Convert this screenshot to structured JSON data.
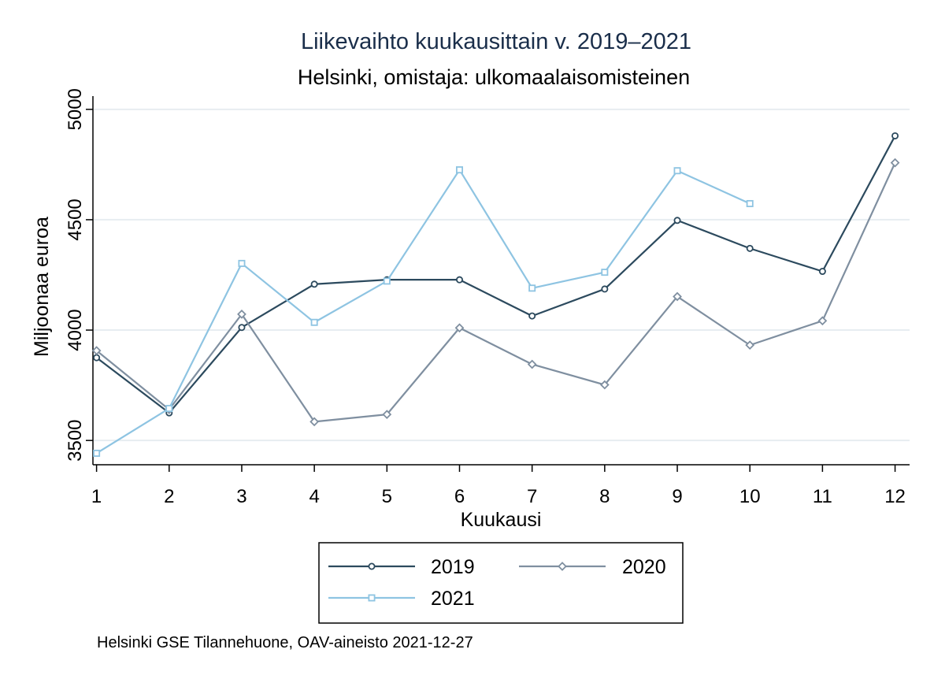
{
  "chart_data": {
    "type": "line",
    "title": "Liikevaihto kuukausittain v. 2019–2021",
    "subtitle": "Helsinki, omistaja: ulkomaalaisomisteinen",
    "xlabel": "Kuukausi",
    "ylabel": "Miljoonaa euroa",
    "xlim": [
      0.95,
      12.2
    ],
    "ylim": [
      3390,
      5060
    ],
    "x_ticks": [
      1,
      2,
      3,
      4,
      5,
      6,
      7,
      8,
      9,
      10,
      11,
      12
    ],
    "y_ticks": [
      3500,
      4000,
      4500,
      5000
    ],
    "grid": true,
    "legend_position": "bottom",
    "series": [
      {
        "name": "2019",
        "color": "#2c4a5e",
        "marker": "circle",
        "x": [
          1,
          2,
          3,
          4,
          5,
          6,
          7,
          8,
          9,
          10,
          11,
          12
        ],
        "values": [
          3875,
          3625,
          4012,
          4208,
          4228,
          4228,
          4064,
          4186,
          4497,
          4370,
          4266,
          4880
        ]
      },
      {
        "name": "2020",
        "color": "#7f8fa0",
        "marker": "diamond",
        "x": [
          1,
          2,
          3,
          4,
          5,
          6,
          7,
          8,
          9,
          10,
          11,
          12
        ],
        "values": [
          3907,
          3640,
          4072,
          3585,
          3618,
          4010,
          3845,
          3752,
          4152,
          3932,
          4042,
          4758
        ]
      },
      {
        "name": "2021",
        "color": "#8ec4e2",
        "marker": "square",
        "x": [
          1,
          2,
          3,
          4,
          5,
          6,
          7,
          8,
          9,
          10
        ],
        "values": [
          3442,
          3645,
          4302,
          4035,
          4222,
          4726,
          4190,
          4262,
          4722,
          4573
        ]
      }
    ],
    "note": "Helsinki GSE Tilannehuone, OAV-aineisto 2021-12-27"
  }
}
